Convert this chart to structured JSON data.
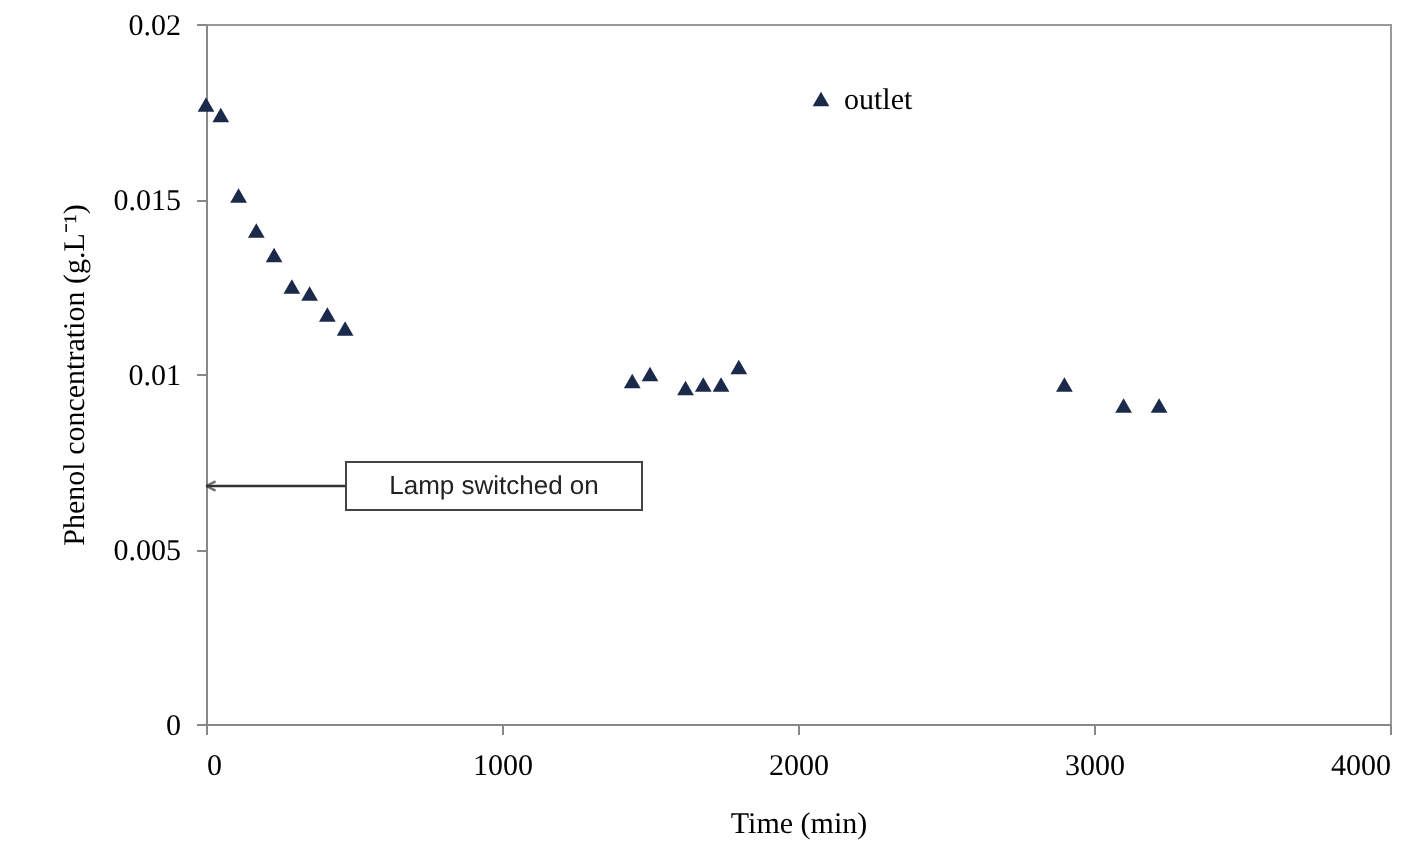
{
  "chart_data": {
    "type": "scatter",
    "xlabel": "Time (min)",
    "ylabel": "Phenol concentration (g.L⁻¹)",
    "x": [
      0,
      50,
      110,
      170,
      230,
      290,
      350,
      410,
      470,
      1440,
      1500,
      1620,
      1680,
      1740,
      1800,
      2900,
      3100,
      3220
    ],
    "series": [
      {
        "name": "outlet",
        "color": "#1b2a4a",
        "values": [
          0.0177,
          0.0174,
          0.0151,
          0.0141,
          0.0134,
          0.0125,
          0.0123,
          0.0117,
          0.0113,
          0.0098,
          0.01,
          0.0096,
          0.0097,
          0.0097,
          0.0102,
          0.0097,
          0.0091,
          0.0091
        ]
      }
    ],
    "xlim": [
      0,
      4000
    ],
    "xticks": [
      0,
      1000,
      2000,
      3000,
      4000
    ],
    "ylim": [
      0,
      0.02
    ],
    "yticks": [
      0,
      0.005,
      0.01,
      0.015,
      0.02
    ],
    "annotations": [
      "Lamp switched on"
    ],
    "marker": "triangle",
    "legend": "top right",
    "grid": false
  }
}
